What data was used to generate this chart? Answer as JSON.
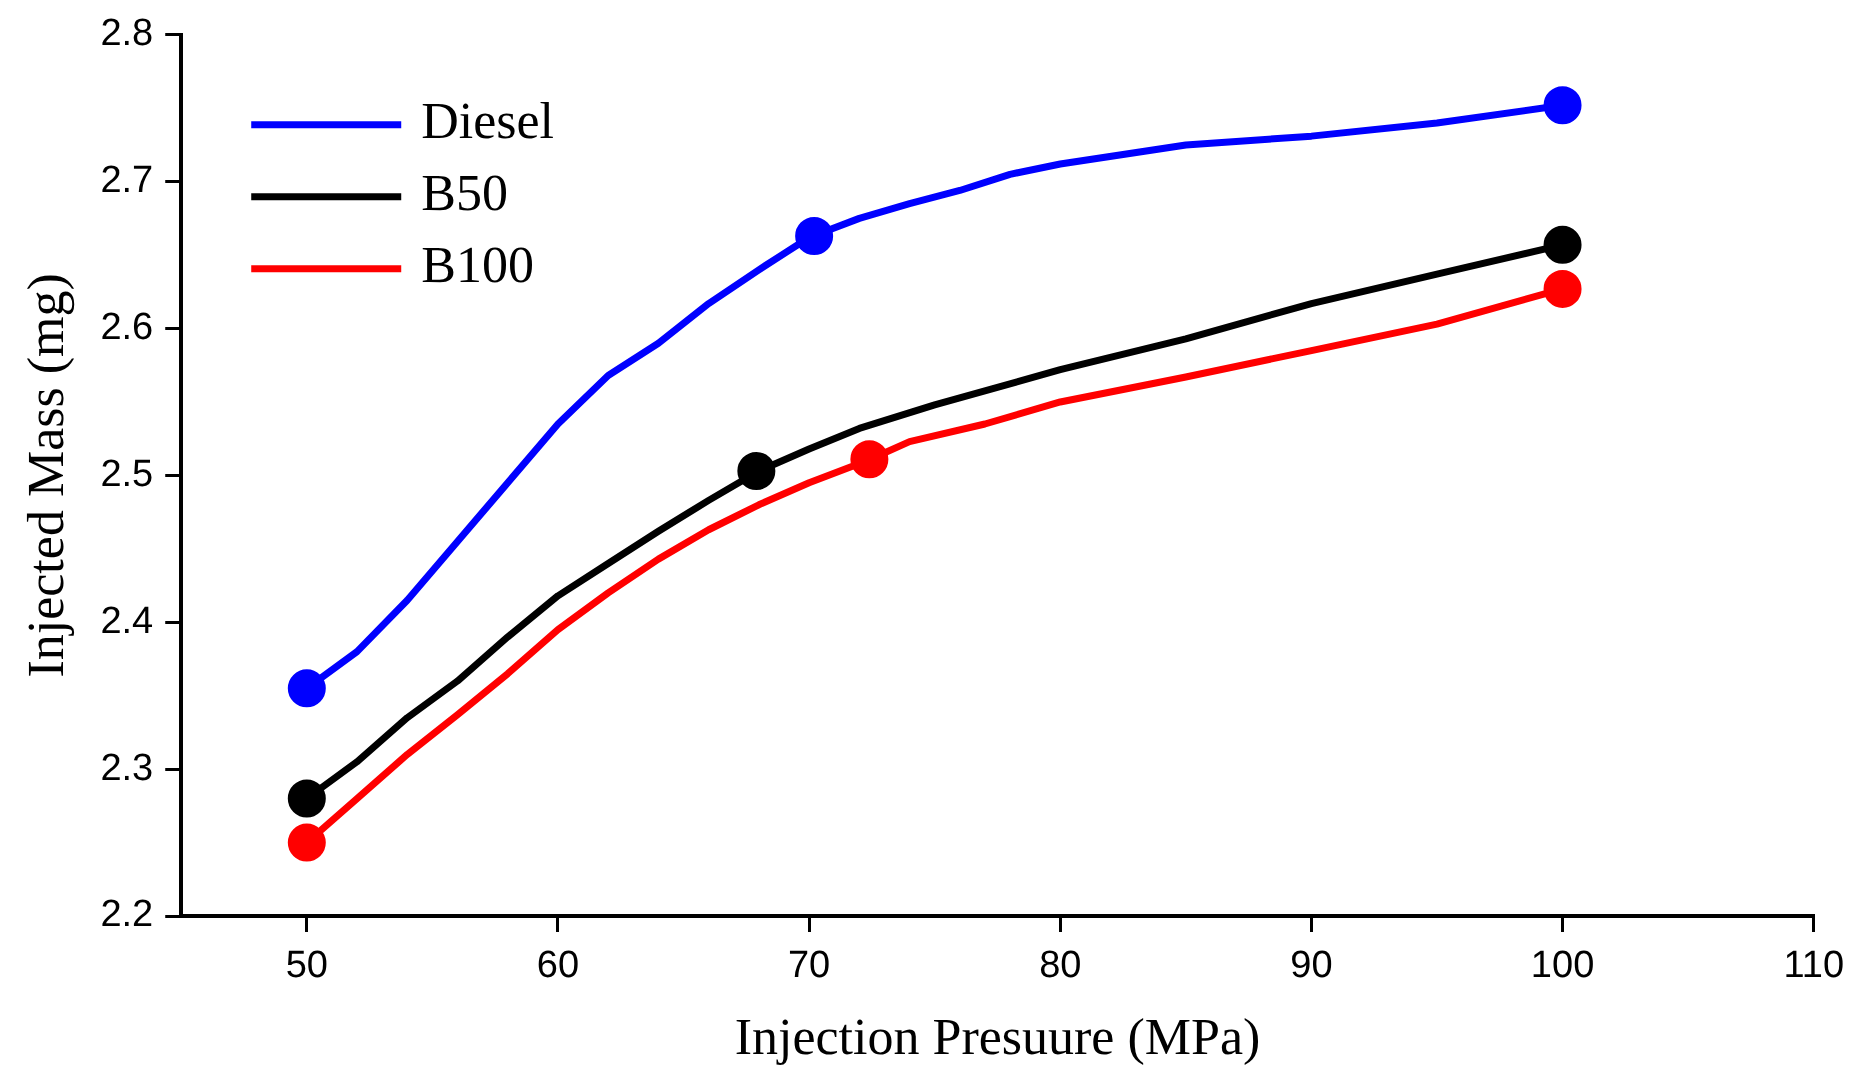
{
  "chart_data": {
    "type": "line",
    "xlabel": "Injection Presuure (MPa)",
    "ylabel": "Injected Mass (mg)",
    "xlim": [
      45,
      110
    ],
    "xticks": [
      50,
      60,
      70,
      80,
      90,
      100,
      110
    ],
    "ylim": [
      2.2,
      2.8
    ],
    "yticks": [
      2.2,
      2.3,
      2.4,
      2.5,
      2.6,
      2.7,
      2.8
    ],
    "grid": false,
    "legend": "top left",
    "line_style": "solid",
    "series": [
      {
        "name": "Diesel",
        "color": "#0000ff",
        "x": [
          50,
          52,
          54,
          56,
          58,
          60,
          62,
          64,
          66,
          68,
          70,
          72,
          74,
          76,
          78,
          80,
          85,
          90,
          95,
          100
        ],
        "values": [
          2.355,
          2.38,
          2.415,
          2.455,
          2.495,
          2.535,
          2.568,
          2.59,
          2.617,
          2.64,
          2.662,
          2.675,
          2.685,
          2.694,
          2.705,
          2.712,
          2.725,
          2.731,
          2.74,
          2.752
        ]
      },
      {
        "name": "B50",
        "color": "#000000",
        "x": [
          50,
          52,
          54,
          56,
          58,
          60,
          62,
          64,
          66,
          68,
          70,
          72,
          75,
          80,
          85,
          90,
          95,
          100
        ],
        "values": [
          2.28,
          2.305,
          2.335,
          2.36,
          2.39,
          2.418,
          2.44,
          2.462,
          2.483,
          2.503,
          2.518,
          2.532,
          2.548,
          2.572,
          2.593,
          2.617,
          2.637,
          2.657
        ]
      },
      {
        "name": "B100",
        "color": "#ff0000",
        "x": [
          50,
          52,
          54,
          56,
          58,
          60,
          62,
          64,
          66,
          68,
          70,
          72.3,
          74,
          77,
          80,
          85,
          90,
          95,
          100
        ],
        "values": [
          2.25,
          2.28,
          2.31,
          2.337,
          2.365,
          2.395,
          2.42,
          2.443,
          2.463,
          2.48,
          2.495,
          2.51,
          2.523,
          2.535,
          2.55,
          2.567,
          2.585,
          2.603,
          2.627
        ]
      },
      {
        "type": "scatter",
        "marker": "circle",
        "color": "#0000ff",
        "x": [
          50,
          70.2,
          100
        ],
        "values": [
          2.355,
          2.663,
          2.752
        ]
      },
      {
        "type": "scatter",
        "marker": "circle",
        "color": "#000000",
        "x": [
          50,
          67.9,
          100
        ],
        "values": [
          2.28,
          2.503,
          2.657
        ]
      },
      {
        "type": "scatter",
        "marker": "circle",
        "color": "#ff0000",
        "x": [
          50,
          72.4,
          100
        ],
        "values": [
          2.25,
          2.511,
          2.627
        ]
      }
    ]
  }
}
